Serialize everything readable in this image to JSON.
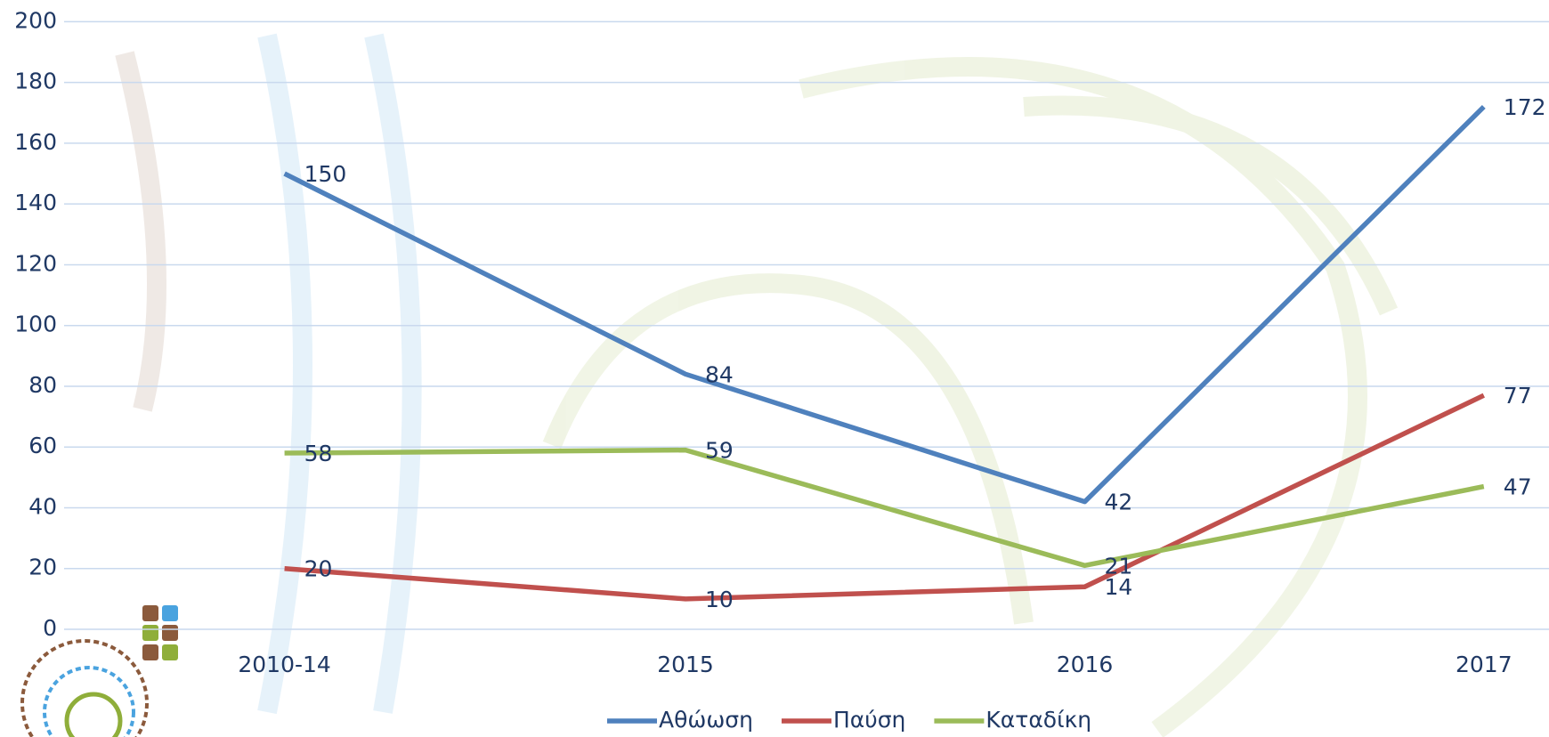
{
  "chart_data": {
    "type": "line",
    "categories": [
      "2010-14",
      "2015",
      "2016",
      "2017"
    ],
    "series": [
      {
        "name": "Αθώωση",
        "color": "#4f81bd",
        "values": [
          150,
          84,
          42,
          172
        ]
      },
      {
        "name": "Παύση",
        "color": "#c0504d",
        "values": [
          20,
          10,
          14,
          77
        ]
      },
      {
        "name": "Καταδίκη",
        "color": "#9bbb59",
        "values": [
          58,
          59,
          21,
          47
        ]
      }
    ],
    "ylim": [
      0,
      200
    ],
    "yticks": [
      0,
      20,
      40,
      60,
      80,
      100,
      120,
      140,
      160,
      180,
      200
    ],
    "grid": true,
    "legend": "bottom"
  }
}
